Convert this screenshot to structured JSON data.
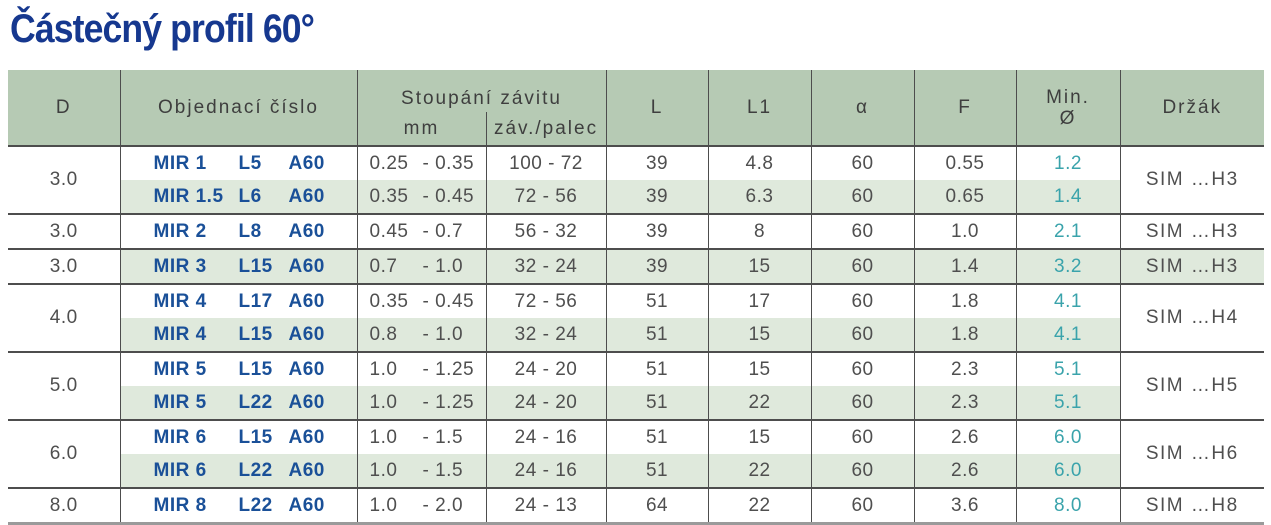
{
  "title": "Částečný profil 60°",
  "colors": {
    "title_blue": "#16388f",
    "order_blue": "#1a5098",
    "teal": "#3aa3ab",
    "header_green": "#b6cab4",
    "band_green": "#dfe9dc",
    "text_gray": "#4f4f4f",
    "line_dark": "#4d4d4d",
    "line_light": "#9a9a9a"
  },
  "table": {
    "headers": {
      "d": "D",
      "order": "Objednací číslo",
      "pitch": "Stoupání závitu",
      "pitch_mm": "mm",
      "pitch_tpi": "záv./palec",
      "l": "L",
      "l1": "L1",
      "alpha": "α",
      "f": "F",
      "min_line1": "Min.",
      "min_line2": "Ø",
      "holder": "Držák"
    },
    "groups": [
      {
        "d": "3.0",
        "holder": "SIM …H3",
        "rows": [
          {
            "order": [
              "MIR 1",
              "L5",
              "A60"
            ],
            "mm": [
              "0.25",
              "- 0.35"
            ],
            "tpi": "100 - 72",
            "l": "39",
            "l1": "4.8",
            "alpha": "60",
            "f": "0.55",
            "min": "1.2"
          },
          {
            "order": [
              "MIR 1.5",
              "L6",
              "A60"
            ],
            "mm": [
              "0.35",
              "- 0.45"
            ],
            "tpi": "72 - 56",
            "l": "39",
            "l1": "6.3",
            "alpha": "60",
            "f": "0.65",
            "min": "1.4"
          }
        ]
      },
      {
        "d": "3.0",
        "holder": "SIM …H3",
        "rows": [
          {
            "order": [
              "MIR 2",
              "L8",
              "A60"
            ],
            "mm": [
              "0.45",
              "- 0.7"
            ],
            "tpi": "56 - 32",
            "l": "39",
            "l1": "8",
            "alpha": "60",
            "f": "1.0",
            "min": "2.1"
          }
        ]
      },
      {
        "d": "3.0",
        "holder": "SIM …H3",
        "rows": [
          {
            "order": [
              "MIR 3",
              "L15",
              "A60"
            ],
            "mm": [
              "0.7",
              "- 1.0"
            ],
            "tpi": "32 - 24",
            "l": "39",
            "l1": "15",
            "alpha": "60",
            "f": "1.4",
            "min": "3.2"
          }
        ]
      },
      {
        "d": "4.0",
        "holder": "SIM …H4",
        "rows": [
          {
            "order": [
              "MIR 4",
              "L17",
              "A60"
            ],
            "mm": [
              "0.35",
              "- 0.45"
            ],
            "tpi": "72 - 56",
            "l": "51",
            "l1": "17",
            "alpha": "60",
            "f": "1.8",
            "min": "4.1"
          },
          {
            "order": [
              "MIR 4",
              "L15",
              "A60"
            ],
            "mm": [
              "0.8",
              "- 1.0"
            ],
            "tpi": "32 - 24",
            "l": "51",
            "l1": "15",
            "alpha": "60",
            "f": "1.8",
            "min": "4.1"
          }
        ]
      },
      {
        "d": "5.0",
        "holder": "SIM …H5",
        "rows": [
          {
            "order": [
              "MIR 5",
              "L15",
              "A60"
            ],
            "mm": [
              "1.0",
              "- 1.25"
            ],
            "tpi": "24 - 20",
            "l": "51",
            "l1": "15",
            "alpha": "60",
            "f": "2.3",
            "min": "5.1"
          },
          {
            "order": [
              "MIR 5",
              "L22",
              "A60"
            ],
            "mm": [
              "1.0",
              "- 1.25"
            ],
            "tpi": "24 - 20",
            "l": "51",
            "l1": "22",
            "alpha": "60",
            "f": "2.3",
            "min": "5.1"
          }
        ]
      },
      {
        "d": "6.0",
        "holder": "SIM …H6",
        "rows": [
          {
            "order": [
              "MIR 6",
              "L15",
              "A60"
            ],
            "mm": [
              "1.0",
              "- 1.5"
            ],
            "tpi": "24 - 16",
            "l": "51",
            "l1": "15",
            "alpha": "60",
            "f": "2.6",
            "min": "6.0"
          },
          {
            "order": [
              "MIR 6",
              "L22",
              "A60"
            ],
            "mm": [
              "1.0",
              "- 1.5"
            ],
            "tpi": "24 - 16",
            "l": "51",
            "l1": "22",
            "alpha": "60",
            "f": "2.6",
            "min": "6.0"
          }
        ]
      },
      {
        "d": "8.0",
        "holder": "SIM …H8",
        "rows": [
          {
            "order": [
              "MIR 8",
              "L22",
              "A60"
            ],
            "mm": [
              "1.0",
              "- 2.0"
            ],
            "tpi": "24 - 13",
            "l": "64",
            "l1": "22",
            "alpha": "60",
            "f": "3.6",
            "min": "8.0"
          }
        ]
      }
    ]
  }
}
